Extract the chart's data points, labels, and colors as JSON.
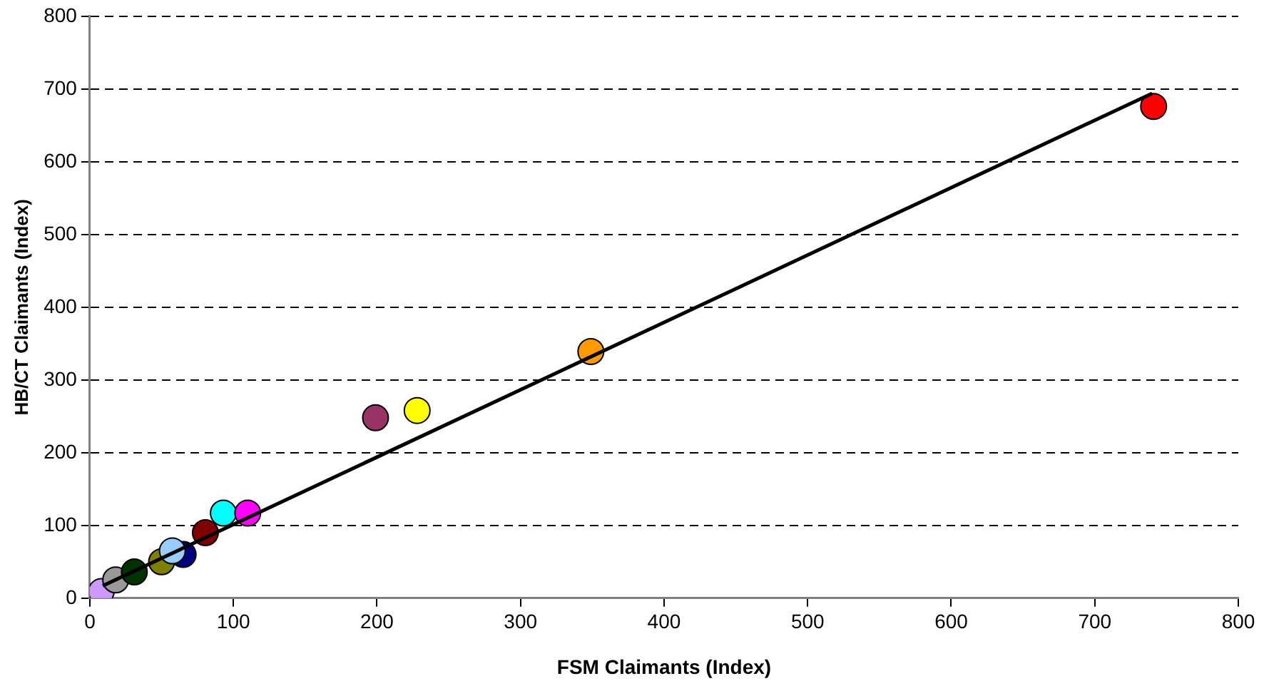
{
  "chart_data": {
    "type": "scatter",
    "xlabel": "FSM Claimants (Index)",
    "ylabel": "HB/CT Claimants (Index)",
    "xlim": [
      0,
      800
    ],
    "xticks": [
      0,
      100,
      200,
      300,
      400,
      500,
      600,
      700,
      800
    ],
    "ylim": [
      0,
      800
    ],
    "yticks": [
      0,
      100,
      200,
      300,
      400,
      500,
      600,
      700,
      800
    ],
    "grid": "y",
    "legend": false,
    "series": [
      {
        "marker": "circle",
        "x": [
          8,
          18,
          31,
          50,
          65,
          57.5,
          80.5,
          93,
          110,
          199,
          228,
          349,
          741
        ],
        "values": [
          9,
          25,
          36,
          50,
          60,
          65,
          90,
          117,
          117,
          248,
          258,
          339,
          676
        ],
        "colors": [
          "#cc99ff",
          "#999999",
          "#003300",
          "#808000",
          "#000080",
          "#99ccff",
          "#800000",
          "#00ffff",
          "#ff00ff",
          "#993366",
          "#ffff00",
          "#ff9900",
          "#ff0000"
        ]
      },
      {
        "type": "line",
        "marker": "none",
        "color": "#000000",
        "x": [
          9,
          740
        ],
        "values": [
          17,
          694
        ]
      }
    ]
  }
}
